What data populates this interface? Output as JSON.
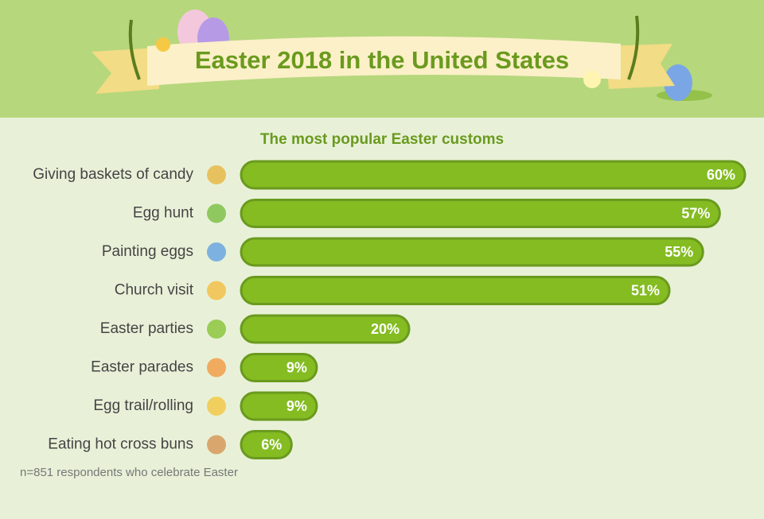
{
  "chart_data": {
    "type": "bar",
    "orientation": "horizontal",
    "title": "Easter 2018 in the United States",
    "subtitle": "The most popular Easter customs",
    "categories": [
      "Giving baskets of candy",
      "Egg hunt",
      "Painting eggs",
      "Church visit",
      "Easter parties",
      "Easter parades",
      "Egg trail/rolling",
      "Eating hot cross buns"
    ],
    "values": [
      60,
      57,
      55,
      51,
      20,
      9,
      9,
      6
    ],
    "value_labels": [
      "60%",
      "57%",
      "55%",
      "51%",
      "20%",
      "9%",
      "9%",
      "6%"
    ],
    "color": "#84bc22",
    "note": "n=851 respondents who celebrate Easter"
  }
}
